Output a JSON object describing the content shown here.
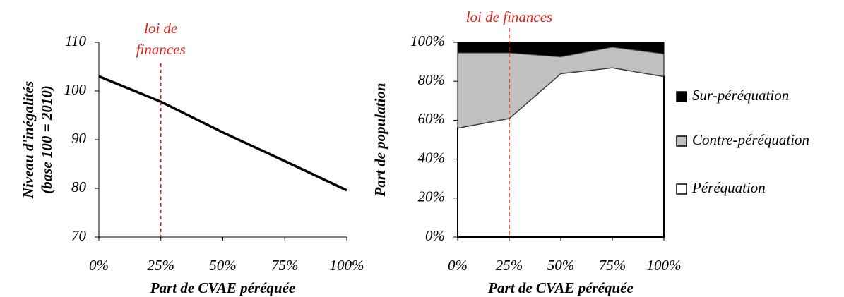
{
  "chart_data": [
    {
      "type": "line",
      "x": [
        0,
        25,
        50,
        75,
        100
      ],
      "series": [
        {
          "name": "Niveau",
          "color": "#000000",
          "values": [
            103,
            97.8,
            91.5,
            85.6,
            79.6
          ]
        }
      ],
      "xlim": [
        0,
        100
      ],
      "ylim": [
        70,
        110
      ],
      "xticks": [
        {
          "value": 0,
          "label": "0%"
        },
        {
          "value": 25,
          "label": "25%"
        },
        {
          "value": 50,
          "label": "50%"
        },
        {
          "value": 75,
          "label": "75%"
        },
        {
          "value": 100,
          "label": "100%"
        }
      ],
      "yticks": [
        70,
        80,
        90,
        100,
        110
      ],
      "ylabel": [
        "Niveau d'inégalités",
        "(base 100 = 2010)"
      ],
      "xlabel": "Part de CVAE péréquée",
      "annotation": {
        "x": 25,
        "text": [
          "loi de",
          "finances"
        ]
      }
    },
    {
      "type": "stacked_area",
      "x": [
        0,
        25,
        50,
        75,
        100
      ],
      "series": [
        {
          "name": "Péréquation",
          "color": "#ffffff",
          "values": [
            56,
            61,
            84,
            87,
            82.5
          ]
        },
        {
          "name": "Contre-péréquation",
          "color": "#c0c0c0",
          "values": [
            38.5,
            33.5,
            8.5,
            10.5,
            11.5
          ]
        },
        {
          "name": "Sur-péréquation",
          "color": "#000000",
          "values": [
            5.5,
            5.5,
            7.5,
            2.5,
            6
          ]
        }
      ],
      "xlim": [
        0,
        100
      ],
      "ylim": [
        0,
        100
      ],
      "xticks": [
        {
          "value": 0,
          "label": "0%"
        },
        {
          "value": 25,
          "label": "25%"
        },
        {
          "value": 50,
          "label": "50%"
        },
        {
          "value": 75,
          "label": "75%"
        },
        {
          "value": 100,
          "label": "100%"
        }
      ],
      "yticks": [
        {
          "value": 0,
          "label": "0%"
        },
        {
          "value": 20,
          "label": "20%"
        },
        {
          "value": 40,
          "label": "40%"
        },
        {
          "value": 60,
          "label": "60%"
        },
        {
          "value": 80,
          "label": "80%"
        },
        {
          "value": 100,
          "label": "100%"
        }
      ],
      "ylabel": [
        "Part de population"
      ],
      "xlabel": "Part de CVAE péréquée",
      "annotation": {
        "x": 25,
        "text": [
          "loi de finances"
        ]
      }
    }
  ]
}
